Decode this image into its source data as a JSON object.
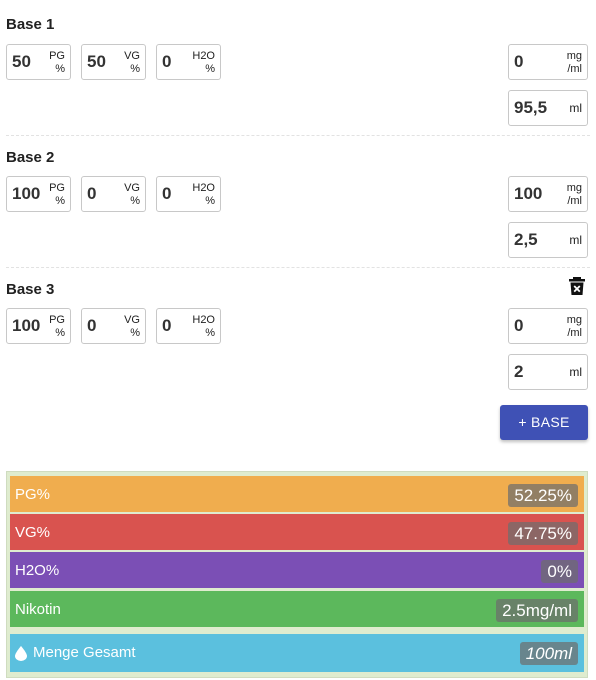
{
  "bases": [
    {
      "title": "Base 1",
      "pg": "50",
      "pg_unit": [
        "PG",
        "%"
      ],
      "vg": "50",
      "vg_unit": [
        "VG",
        "%"
      ],
      "h2o": "0",
      "h2o_unit": [
        "H2O",
        "%"
      ],
      "nic": "0",
      "nic_unit": [
        "mg",
        "/ml"
      ],
      "amount": "95,5",
      "amount_unit": "ml"
    },
    {
      "title": "Base 2",
      "pg": "100",
      "pg_unit": [
        "PG",
        "%"
      ],
      "vg": "0",
      "vg_unit": [
        "VG",
        "%"
      ],
      "h2o": "0",
      "h2o_unit": [
        "H2O",
        "%"
      ],
      "nic": "100",
      "nic_unit": [
        "mg",
        "/ml"
      ],
      "amount": "2,5",
      "amount_unit": "ml"
    },
    {
      "title": "Base 3",
      "pg": "100",
      "pg_unit": [
        "PG",
        "%"
      ],
      "vg": "0",
      "vg_unit": [
        "VG",
        "%"
      ],
      "h2o": "0",
      "h2o_unit": [
        "H2O",
        "%"
      ],
      "nic": "0",
      "nic_unit": [
        "mg",
        "/ml"
      ],
      "amount": "2",
      "amount_unit": "ml",
      "delete_icon": "trash-icon"
    }
  ],
  "add_base_label": "+ BASE",
  "summary": {
    "pg": {
      "label": "PG%",
      "value": "52.25%",
      "color": "#f0ad4e"
    },
    "vg": {
      "label": "VG%",
      "value": "47.75%",
      "color": "#d9534f"
    },
    "h2o": {
      "label": "H2O%",
      "value": "0%",
      "color": "#7b4fb5"
    },
    "nicotine": {
      "label": "Nikotin",
      "value": "2.5mg/ml",
      "color": "#5cb85c"
    },
    "total": {
      "label": "Menge Gesamt",
      "value": "100ml",
      "color": "#5bc0de",
      "icon": "drop-icon"
    }
  },
  "accent_color": "#3f51b5"
}
